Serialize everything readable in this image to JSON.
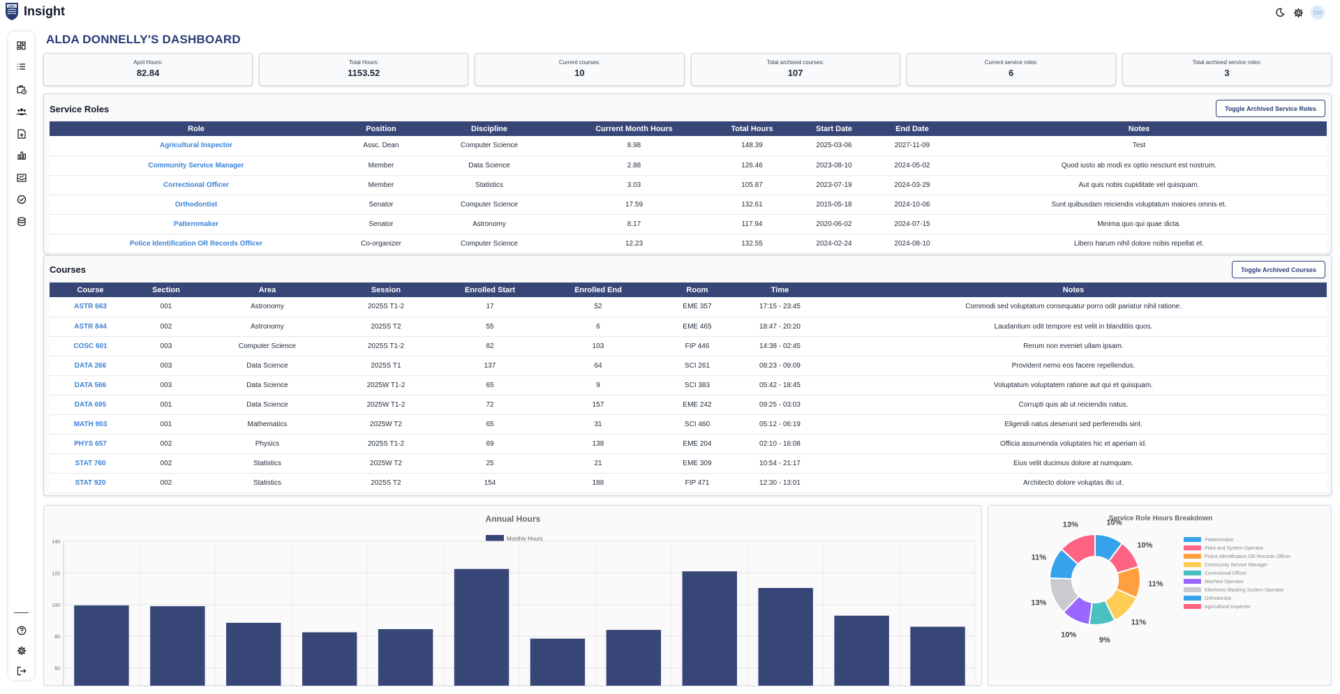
{
  "app": {
    "title": "Insight",
    "logo_text": "UBC",
    "avatar_initials": "DH"
  },
  "page": {
    "title": "ALDA DONNELLY'S DASHBOARD"
  },
  "stats": [
    {
      "label": "April Hours:",
      "value": "82.84"
    },
    {
      "label": "Total Hours:",
      "value": "1153.52"
    },
    {
      "label": "Current courses:",
      "value": "10"
    },
    {
      "label": "Total archived courses:",
      "value": "107"
    },
    {
      "label": "Current service roles:",
      "value": "6"
    },
    {
      "label": "Total archived service roles:",
      "value": "3"
    }
  ],
  "sidebar": {
    "icons": [
      "dashboard-icon",
      "list-icon",
      "briefcase-clock-icon",
      "people-icon",
      "document-add-icon",
      "bar-chart-icon",
      "inbox-icon",
      "check-circle-icon",
      "database-icon"
    ],
    "bottom_icons": [
      "help-icon",
      "settings-icon",
      "logout-icon"
    ]
  },
  "service_roles": {
    "title": "Service Roles",
    "toggle_label": "Toggle Archived Service Roles",
    "columns": [
      "Role",
      "Position",
      "Discipline",
      "Current Month Hours",
      "Total Hours",
      "Start Date",
      "End Date",
      "Notes"
    ],
    "rows": [
      [
        "Agricultural Inspector",
        "Assc. Dean",
        "Computer Science",
        "8.98",
        "148.39",
        "2025-03-06",
        "2027-11-09",
        "Test"
      ],
      [
        "Community Service Manager",
        "Member",
        "Data Science",
        "2.88",
        "126.46",
        "2023-08-10",
        "2024-05-02",
        "Quod iusto ab modi ex optio nesciunt est nostrum."
      ],
      [
        "Correctional Officer",
        "Member",
        "Statistics",
        "3.03",
        "105.87",
        "2023-07-19",
        "2024-03-29",
        "Aut quis nobis cupiditate vel quisquam."
      ],
      [
        "Orthodontist",
        "Senator",
        "Computer Science",
        "17.59",
        "132.61",
        "2015-05-18",
        "2024-10-06",
        "Sunt quibusdam reiciendis voluptatum maiores omnis et."
      ],
      [
        "Patternmaker",
        "Senator",
        "Astronomy",
        "8.17",
        "117.94",
        "2020-06-02",
        "2024-07-15",
        "Minima quo qui quae dicta."
      ],
      [
        "Police Identification OR Records Officer",
        "Co-organizer",
        "Computer Science",
        "12.23",
        "132.55",
        "2024-02-24",
        "2024-08-10",
        "Libero harum nihil dolore nobis repellat et."
      ]
    ]
  },
  "courses": {
    "title": "Courses",
    "toggle_label": "Toggle Archived Courses",
    "columns": [
      "Course",
      "Section",
      "Area",
      "Session",
      "Enrolled Start",
      "Enrolled End",
      "Room",
      "Time",
      "Notes"
    ],
    "rows": [
      [
        "ASTR 663",
        "001",
        "Astronomy",
        "2025S T1-2",
        "17",
        "52",
        "EME 357",
        "17:15 - 23:45",
        "Commodi sed voluptatum consequatur porro odit pariatur nihil ratione."
      ],
      [
        "ASTR 844",
        "002",
        "Astronomy",
        "2025S T2",
        "55",
        "6",
        "EME 465",
        "18:47 - 20:20",
        "Laudantium odit tempore est velit in blanditiis quos."
      ],
      [
        "COSC 601",
        "003",
        "Computer Science",
        "2025S T1-2",
        "82",
        "103",
        "FIP 446",
        "14:38 - 02:45",
        "Rerum non eveniet ullam ipsam."
      ],
      [
        "DATA 266",
        "003",
        "Data Science",
        "2025S T1",
        "137",
        "64",
        "SCI 261",
        "08:23 - 09:09",
        "Provident nemo eos facere repellendus."
      ],
      [
        "DATA 566",
        "003",
        "Data Science",
        "2025W T1-2",
        "65",
        "9",
        "SCI 383",
        "05:42 - 18:45",
        "Voluptatum voluptatem ratione aut qui et quisquam."
      ],
      [
        "DATA 695",
        "001",
        "Data Science",
        "2025W T1-2",
        "72",
        "157",
        "EME 242",
        "09:25 - 03:03",
        "Corrupti quis ab ut reiciendis natus."
      ],
      [
        "MATH 903",
        "001",
        "Mathematics",
        "2025W T2",
        "65",
        "31",
        "SCI 460",
        "05:12 - 06:19",
        "Eligendi natus deserunt sed perferendis sint."
      ],
      [
        "PHYS 657",
        "002",
        "Physics",
        "2025S T1-2",
        "69",
        "138",
        "EME 204",
        "02:10 - 16:08",
        "Officia assumenda voluptates hic et aperiam id."
      ],
      [
        "STAT 760",
        "002",
        "Statistics",
        "2025W T2",
        "25",
        "21",
        "EME 309",
        "10:54 - 21:17",
        "Eius velit ducimus dolore at numquam."
      ],
      [
        "STAT 920",
        "002",
        "Statistics",
        "2025S T2",
        "154",
        "188",
        "FIP 471",
        "12:30 - 13:01",
        "Architecto dolore voluptas illo ut."
      ]
    ]
  },
  "chart_data": [
    {
      "type": "bar",
      "title": "Annual Hours",
      "series": [
        {
          "name": "Monthly Hours",
          "values": [
            99.5,
            99,
            88.5,
            82.5,
            84.5,
            122.5,
            78.5,
            84,
            121,
            110.5,
            93,
            86
          ],
          "color": "#374677"
        }
      ],
      "y_ticks": [
        "140",
        "120",
        "100",
        "80",
        "60"
      ],
      "ylim_visible": [
        60,
        140
      ],
      "grid": true,
      "legend": "top-center"
    },
    {
      "type": "pie",
      "subtype": "doughnut",
      "title": "Service Role Hours Breakdown",
      "legend": "right",
      "slices": [
        {
          "label": "Patternmaker",
          "value": 10,
          "display": "10%",
          "color": "#36a2eb"
        },
        {
          "label": "Plant and System Operator",
          "value": 10,
          "display": "10%",
          "color": "#ff6384"
        },
        {
          "label": "Police Identification OR Records Officer",
          "value": 11,
          "display": "11%",
          "color": "#ff9f40"
        },
        {
          "label": "Community Service Manager",
          "value": 11,
          "display": "11%",
          "color": "#ffcd56"
        },
        {
          "label": "Correctional Officer",
          "value": 9,
          "display": "9%",
          "color": "#4bc0c0"
        },
        {
          "label": "Machine Operator",
          "value": 10,
          "display": "10%",
          "color": "#9966ff"
        },
        {
          "label": "Electronic Masking System Operator",
          "value": 13,
          "display": "13%",
          "color": "#c9cbcf"
        },
        {
          "label": "Orthodontist",
          "value": 11,
          "display": "11%",
          "color": "#36a2eb"
        },
        {
          "label": "Agricultural Inspector",
          "value": 13,
          "display": "13%",
          "color": "#ff6384"
        }
      ]
    }
  ]
}
